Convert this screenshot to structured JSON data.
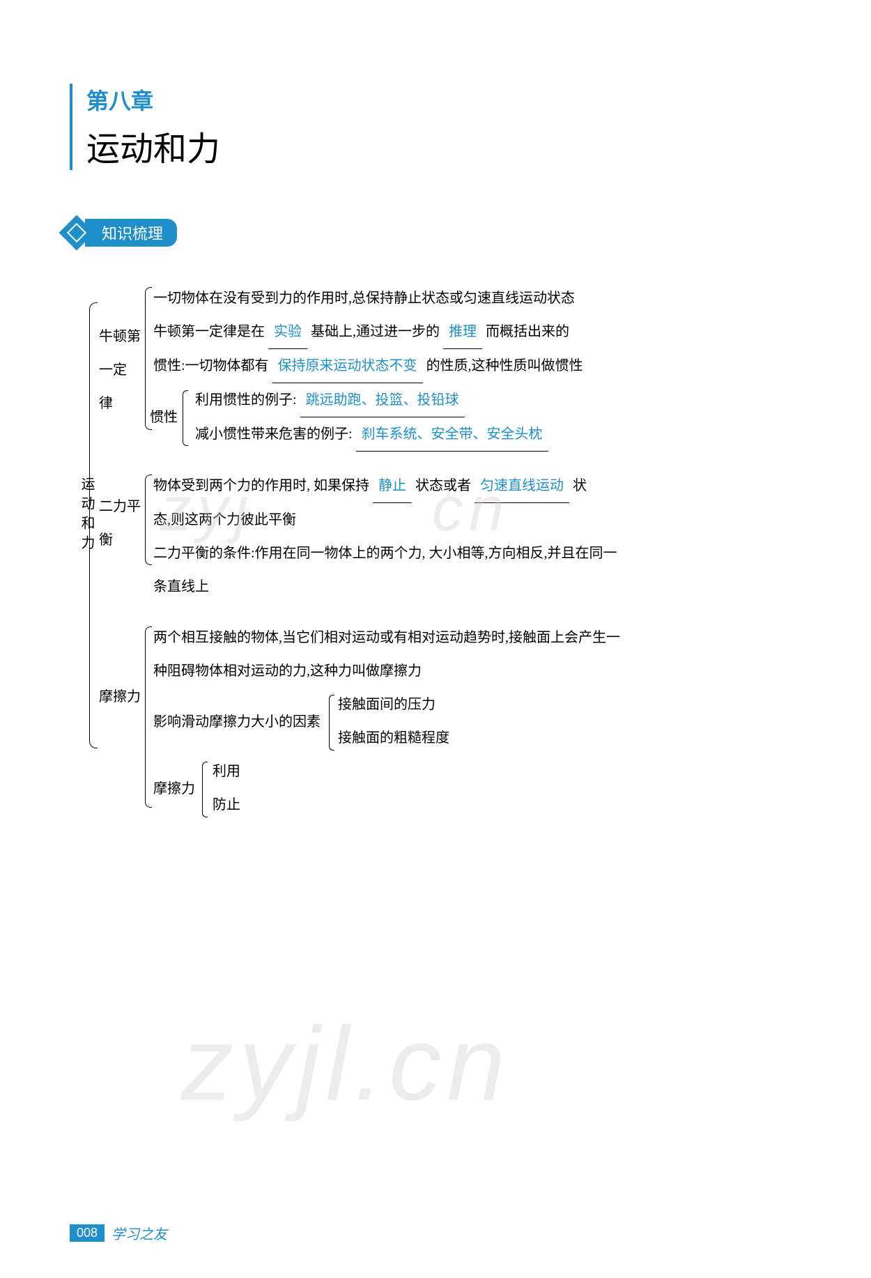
{
  "chapter": {
    "number": "第八章",
    "title": "运动和力"
  },
  "section_badge": "知识梳理",
  "root_label": "运动和力",
  "branches": {
    "newton": {
      "label": "牛顿第一定　　律",
      "line1": "一切物体在没有受到力的作用时,总保持静止状态或匀速直线运动状态",
      "line2_pre": "牛顿第一定律是在",
      "fill1": "实验",
      "line2_mid": "基础上,通过进一步的",
      "fill2": "推理",
      "line2_post": "而概括出来的",
      "line3_pre": "惯性:一切物体都有",
      "fill3": "保持原来运动状态不变",
      "line3_post": "的性质,这种性质叫做惯性",
      "inertia_label": "惯性",
      "line4_pre": "利用惯性的例子:",
      "fill4": "跳远助跑、投篮、投铅球",
      "line5_pre": "减小惯性带来危害的例子:",
      "fill5": "刹车系统、安全带、安全头枕"
    },
    "balance": {
      "label": "二力平衡",
      "line1_pre": "物体受到两个力的作用时, 如果保持",
      "fill1": "静止",
      "line1_mid": "状态或者",
      "fill2": "匀速直线运动",
      "line1_post": "状",
      "line2": "态,则这两个力彼此平衡",
      "line3": "二力平衡的条件:作用在同一物体上的两个力, 大小相等,方向相反,并且在同一",
      "line4": "条直线上"
    },
    "friction": {
      "label": "摩擦力",
      "line1": "两个相互接触的物体,当它们相对运动或有相对运动趋势时,接触面上会产生一",
      "line2": "种阻碍物体相对运动的力,这种力叫做摩擦力",
      "factors_label": "影响滑动摩擦力大小的因素",
      "factor1": "接触面间的压力",
      "factor2": "接触面的粗糙程度",
      "sub_label": "摩擦力",
      "sub1": "利用",
      "sub2": "防止"
    }
  },
  "watermark": {
    "w1": "zyj",
    "w2": "cn",
    "w3": "zyjl.cn"
  },
  "footer": {
    "page": "008",
    "text": "学习之友"
  },
  "colors": {
    "primary": "#1e8fc8",
    "text": "#000000",
    "bg": "#ffffff"
  }
}
